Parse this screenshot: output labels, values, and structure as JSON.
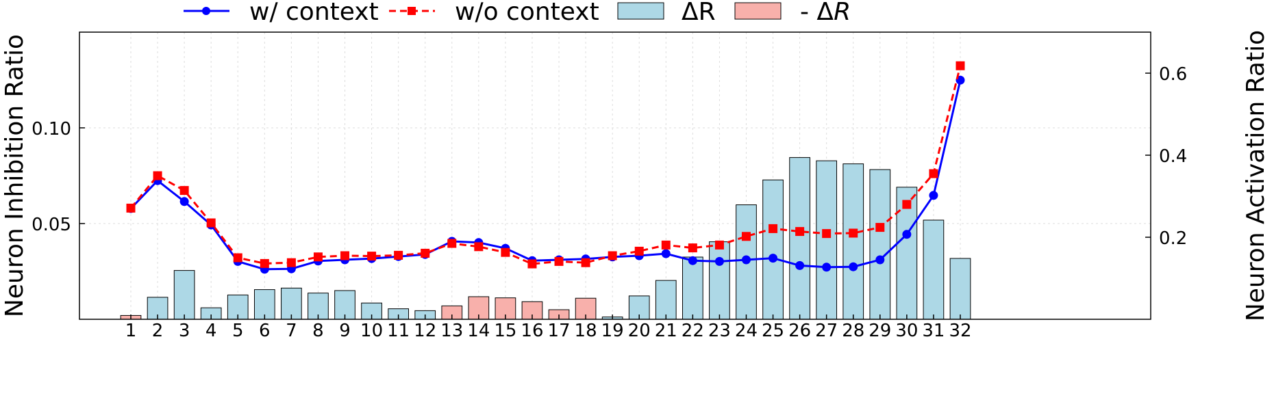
{
  "chart_data": {
    "type": "bar+line",
    "x": [
      1,
      2,
      3,
      4,
      5,
      6,
      7,
      8,
      9,
      10,
      11,
      12,
      13,
      14,
      15,
      16,
      17,
      18,
      19,
      20,
      21,
      22,
      23,
      24,
      25,
      26,
      27,
      28,
      29,
      30,
      31,
      32
    ],
    "series": [
      {
        "name": "w/ context",
        "axis": "right",
        "style": "solid-circle",
        "color": "#0000ff",
        "values": [
          0.27,
          0.338,
          0.287,
          0.23,
          0.141,
          0.122,
          0.123,
          0.142,
          0.145,
          0.148,
          0.153,
          0.158,
          0.19,
          0.187,
          0.173,
          0.143,
          0.145,
          0.147,
          0.152,
          0.155,
          0.16,
          0.143,
          0.141,
          0.145,
          0.149,
          0.131,
          0.127,
          0.128,
          0.145,
          0.207,
          0.302,
          0.583
        ]
      },
      {
        "name": "w/o context",
        "axis": "right",
        "style": "dashed-square",
        "color": "#ff0000",
        "values": [
          0.271,
          0.35,
          0.314,
          0.235,
          0.15,
          0.136,
          0.138,
          0.152,
          0.155,
          0.154,
          0.156,
          0.161,
          0.185,
          0.177,
          0.163,
          0.135,
          0.141,
          0.138,
          0.155,
          0.166,
          0.181,
          0.174,
          0.181,
          0.202,
          0.221,
          0.214,
          0.209,
          0.21,
          0.224,
          0.28,
          0.355,
          0.618
        ]
      },
      {
        "name": "ΔR",
        "axis": "left",
        "style": "bar",
        "color": "#add8e6",
        "values": {
          "2": 0.0115,
          "3": 0.0255,
          "4": 0.006,
          "5": 0.0127,
          "6": 0.0155,
          "7": 0.0163,
          "8": 0.0137,
          "9": 0.015,
          "10": 0.0085,
          "11": 0.0055,
          "12": 0.0045,
          "19": 0.0012,
          "20": 0.0122,
          "21": 0.0203,
          "22": 0.0325,
          "23": 0.0405,
          "24": 0.0598,
          "25": 0.0728,
          "26": 0.0845,
          "27": 0.0828,
          "28": 0.0812,
          "29": 0.0782,
          "30": 0.069,
          "31": 0.0518,
          "32": 0.0318
        }
      },
      {
        "name": "- ΔR",
        "axis": "left",
        "style": "bar",
        "color": "#f8b0ab",
        "values": {
          "1": 0.002,
          "13": 0.007,
          "14": 0.0118,
          "15": 0.0112,
          "16": 0.0092,
          "17": 0.005,
          "18": 0.011
        }
      }
    ],
    "ylabel": "Neuron Inhibition Ratio",
    "y2label": "Neuron Activation Ratio",
    "xlabel": "",
    "ylim": [
      0,
      0.15
    ],
    "y2lim": [
      0,
      0.7
    ],
    "yticks": [
      0.05,
      0.1
    ],
    "y2ticks": [
      0.2,
      0.4,
      0.6
    ],
    "ytick_labels": [
      "0.05",
      "0.10"
    ],
    "y2tick_labels": [
      "0.2",
      "0.4",
      "0.6"
    ],
    "grid": true,
    "legend_position": "top-outside"
  },
  "legend": {
    "w_context": "w/ context",
    "wo_context": "w/o context",
    "delta": "ΔR",
    "neg_delta_prefix": "- Δ",
    "neg_delta_var": "R"
  }
}
